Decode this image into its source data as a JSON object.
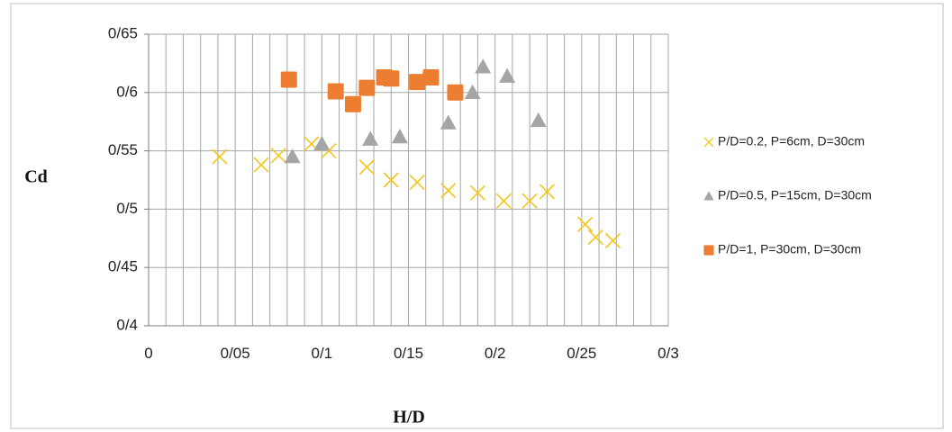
{
  "chart_data": {
    "type": "scatter",
    "title": "",
    "xlabel": "H/D",
    "ylabel": "Cd",
    "xlim": [
      0,
      0.3
    ],
    "ylim": [
      0.4,
      0.65
    ],
    "x_ticks": [
      {
        "value": 0,
        "label": "0"
      },
      {
        "value": 0.05,
        "label": "0/05"
      },
      {
        "value": 0.1,
        "label": "0/1"
      },
      {
        "value": 0.15,
        "label": "0/15"
      },
      {
        "value": 0.2,
        "label": "0/2"
      },
      {
        "value": 0.25,
        "label": "0/25"
      },
      {
        "value": 0.3,
        "label": "0/3"
      }
    ],
    "y_ticks": [
      {
        "value": 0.4,
        "label": "0/4"
      },
      {
        "value": 0.45,
        "label": "0/45"
      },
      {
        "value": 0.5,
        "label": "0/5"
      },
      {
        "value": 0.55,
        "label": "0/55"
      },
      {
        "value": 0.6,
        "label": "0/6"
      },
      {
        "value": 0.65,
        "label": "0/65"
      }
    ],
    "grid": {
      "vertical_minor_step": 0.01,
      "horizontal_step": 0.05
    },
    "legend_position": "right",
    "series": [
      {
        "name": "P/D=0.2, P=6cm, D=30cm",
        "marker": "x",
        "color": "#F5C518",
        "points": [
          [
            0.041,
            0.545
          ],
          [
            0.065,
            0.538
          ],
          [
            0.075,
            0.546
          ],
          [
            0.094,
            0.556
          ],
          [
            0.104,
            0.55
          ],
          [
            0.126,
            0.536
          ],
          [
            0.14,
            0.525
          ],
          [
            0.155,
            0.523
          ],
          [
            0.173,
            0.516
          ],
          [
            0.19,
            0.514
          ],
          [
            0.205,
            0.507
          ],
          [
            0.22,
            0.507
          ],
          [
            0.23,
            0.515
          ],
          [
            0.252,
            0.487
          ],
          [
            0.258,
            0.476
          ],
          [
            0.268,
            0.473
          ]
        ]
      },
      {
        "name": "P/D=0.5, P=15cm, D=30cm",
        "marker": "triangle",
        "color": "#A5A5A5",
        "points": [
          [
            0.083,
            0.545
          ],
          [
            0.1,
            0.556
          ],
          [
            0.128,
            0.56
          ],
          [
            0.145,
            0.562
          ],
          [
            0.173,
            0.574
          ],
          [
            0.187,
            0.6
          ],
          [
            0.193,
            0.622
          ],
          [
            0.207,
            0.614
          ],
          [
            0.225,
            0.576
          ]
        ]
      },
      {
        "name": "P/D=1, P=30cm, D=30cm",
        "marker": "square",
        "color": "#ED7D31",
        "points": [
          [
            0.081,
            0.611
          ],
          [
            0.108,
            0.601
          ],
          [
            0.118,
            0.59
          ],
          [
            0.126,
            0.604
          ],
          [
            0.136,
            0.613
          ],
          [
            0.14,
            0.612
          ],
          [
            0.155,
            0.609
          ],
          [
            0.163,
            0.613
          ],
          [
            0.177,
            0.6
          ]
        ]
      }
    ]
  }
}
